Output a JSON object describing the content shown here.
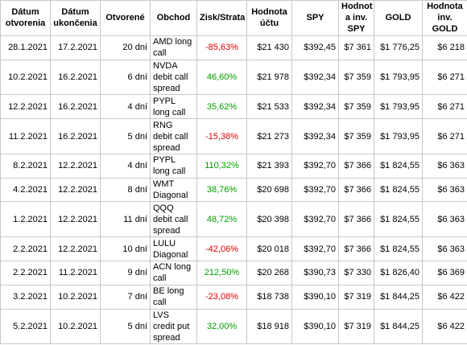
{
  "table": {
    "header": [
      [
        "Dátum",
        "otvorenia"
      ],
      [
        "Dátum",
        "ukončenia"
      ],
      [
        "Otvorené"
      ],
      [
        "Obchod"
      ],
      [
        "Zisk/Strata"
      ],
      [
        "Hodnota",
        "účtu"
      ],
      [
        "SPY"
      ],
      [
        "Hodnot",
        "a inv.",
        "SPY"
      ],
      [
        "GOLD"
      ],
      [
        "Hodnota",
        "inv.",
        "GOLD"
      ]
    ],
    "rows": [
      [
        "28.1.2021",
        "17.2.2021",
        "20 dní",
        [
          "AMD long",
          "call"
        ],
        "-85,63%",
        "$21 430",
        "$392,45",
        "$7 361",
        "$1 776,25",
        "$6 218"
      ],
      [
        "10.2.2021",
        "16.2.2021",
        "6 dní",
        [
          "NVDA",
          "debit call",
          "spread"
        ],
        "46,60%",
        "$21 978",
        "$392,34",
        "$7 359",
        "$1 793,95",
        "$6 271"
      ],
      [
        "12.2.2021",
        "16.2.2021",
        "4 dní",
        [
          "PYPL",
          "long call"
        ],
        "35,62%",
        "$21 533",
        "$392,34",
        "$7 359",
        "$1 793,95",
        "$6 271"
      ],
      [
        "11.2.2021",
        "16.2.2021",
        "5 dní",
        [
          "RNG",
          "debit call",
          "spread"
        ],
        "-15,38%",
        "$21 273",
        "$392,34",
        "$7 359",
        "$1 793,95",
        "$6 271"
      ],
      [
        "8.2.2021",
        "12.2.2021",
        "4 dní",
        [
          "PYPL",
          "long call"
        ],
        "110,32%",
        "$21 393",
        "$392,70",
        "$7 366",
        "$1 824,55",
        "$6 363"
      ],
      [
        "4.2.2021",
        "12.2.2021",
        "8 dní",
        [
          "WMT",
          "Diagonal"
        ],
        "38,76%",
        "$20 698",
        "$392,70",
        "$7 366",
        "$1 824,55",
        "$6 363"
      ],
      [
        "1.2.2021",
        "12.2.2021",
        "11 dní",
        [
          "QQQ",
          "debit call",
          "spread"
        ],
        "48,72%",
        "$20 398",
        "$392,70",
        "$7 366",
        "$1 824,55",
        "$6 363"
      ],
      [
        "2.2.2021",
        "12.2.2021",
        "10 dní",
        [
          "LULU",
          "Diagonal"
        ],
        "-42,06%",
        "$20 018",
        "$392,70",
        "$7 366",
        "$1 824,55",
        "$6 363"
      ],
      [
        "2.2.2021",
        "11.2.2021",
        "9 dní",
        [
          "ACN long",
          "call"
        ],
        "212,50%",
        "$20 268",
        "$390,73",
        "$7 330",
        "$1 826,40",
        "$6 369"
      ],
      [
        "3.2.2021",
        "10.2.2021",
        "7 dní",
        [
          "BE long",
          "call"
        ],
        "-23,08%",
        "$18 738",
        "$390,10",
        "$7 319",
        "$1 844,25",
        "$6 422"
      ],
      [
        "5.2.2021",
        "10.2.2021",
        "5 dní",
        [
          "LVS",
          "credit put",
          "spread"
        ],
        "32,00%",
        "$18 918",
        "$390,10",
        "$7 319",
        "$1 844,25",
        "$6 422"
      ]
    ]
  }
}
